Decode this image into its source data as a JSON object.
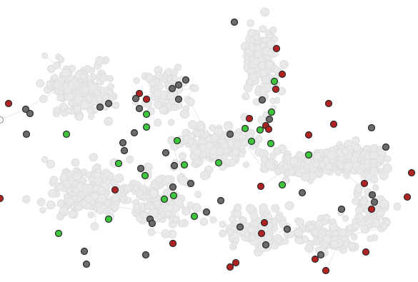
{
  "graph": {
    "type": "network",
    "background_color": "#ffffff",
    "edge_color": "#e8e8e8",
    "node_colors": {
      "background": "#e9e9e9",
      "gray": "#6b6b6b",
      "green": "#3ec63e",
      "red": "#b22222",
      "white": "#ffffff"
    },
    "highlighted_node_counts": {
      "gray": 46,
      "green": 21,
      "red": 25
    }
  }
}
